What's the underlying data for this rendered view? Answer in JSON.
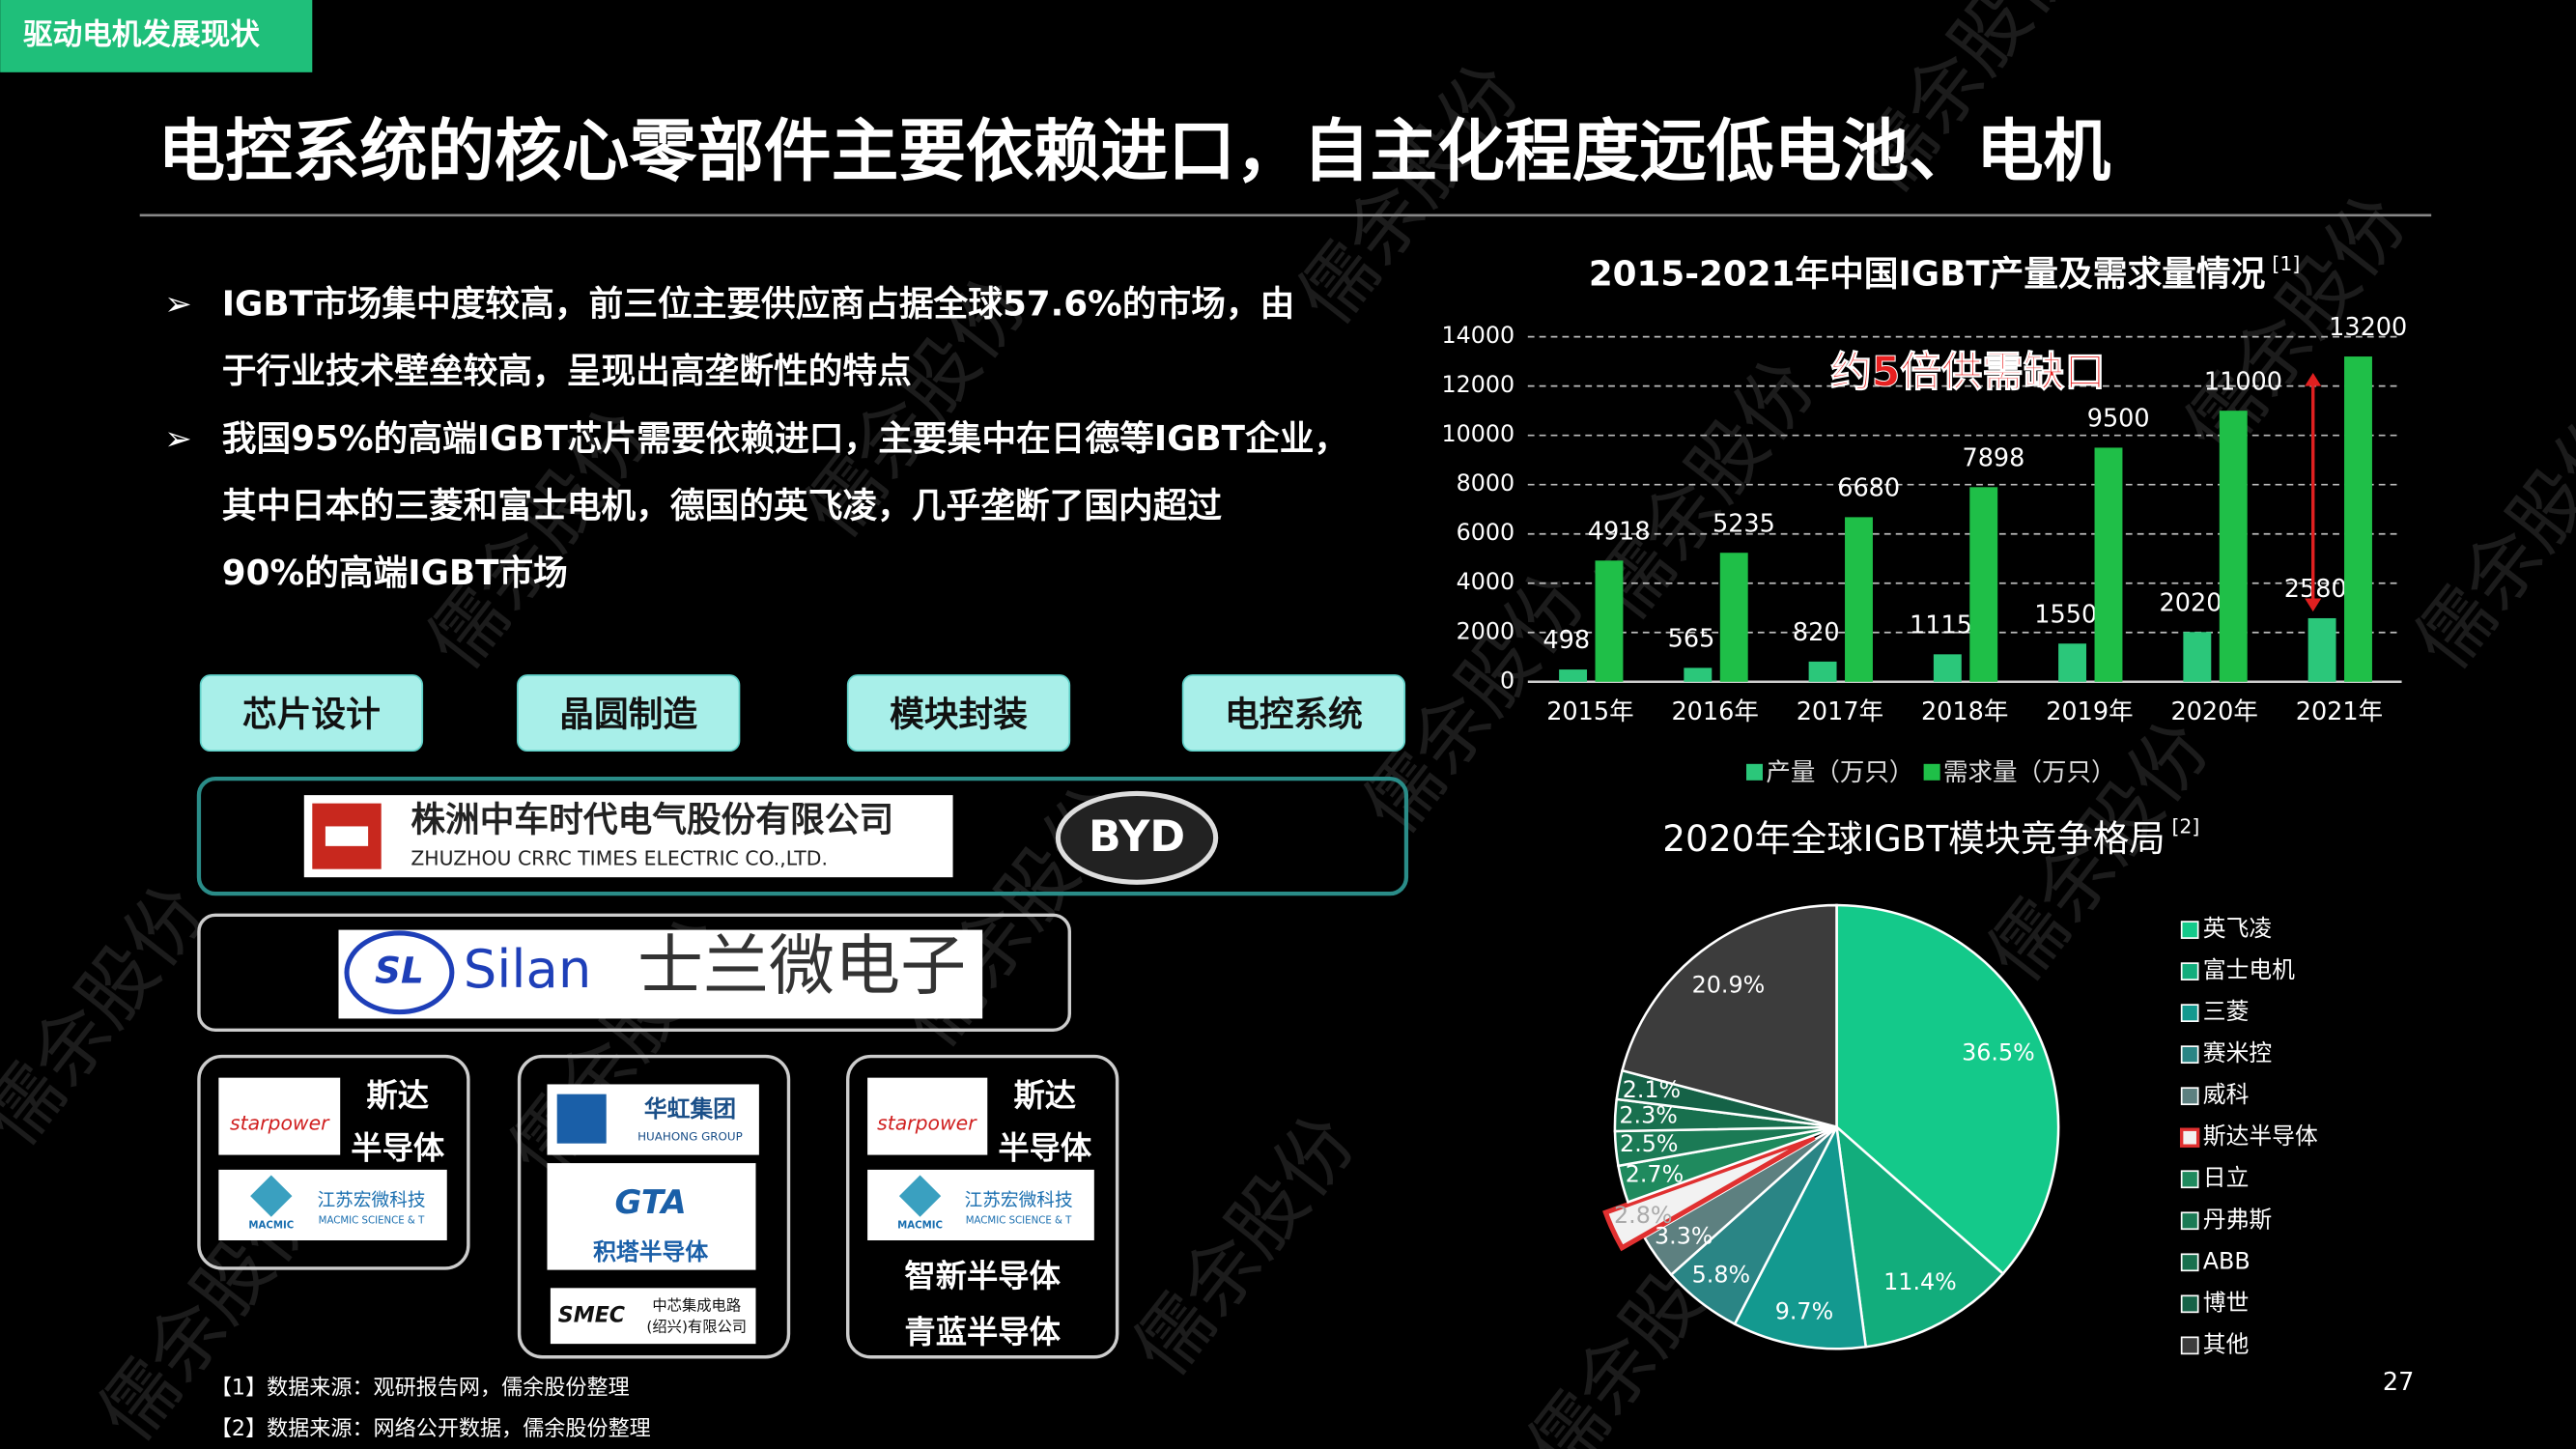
{
  "header": {
    "tag": "驱动电机发展现状",
    "title": "电控系统的核心零部件主要依赖进口，自主化程度远低电池、电机"
  },
  "bullet_marker": "➢",
  "bullets": [
    [
      "IGBT市场集中度较高，前三位主要供应商占据全球57.6%的市场，由",
      "于行业技术壁垒较高，呈现出高垄断性的特点"
    ],
    [
      "我国95%的高端IGBT芯片需要依赖进口，主要集中在日德等IGBT企业，",
      "其中日本的三菱和富士电机，德国的英飞凌，几乎垄断了国内超过",
      "90%的高端IGBT市场"
    ]
  ],
  "supply_chain": {
    "stages": [
      "芯片设计",
      "晶圆制造",
      "模块封装",
      "电控系统"
    ],
    "crrc_cn": "株洲中车时代电气股份有限公司",
    "crrc_en": "ZHUZHOU CRRC TIMES ELECTRIC CO.,LTD.",
    "byd": "BYD",
    "silan": "Silan",
    "silan_cn": "士兰微电子",
    "starpower": "starpower",
    "sida": [
      "斯达",
      "半导体"
    ],
    "macmic_cn": "江苏宏微科技",
    "macmic_en": "MACMIC SCIENCE & T",
    "macmic": "MACMIC",
    "huahong_cn": "华虹集团",
    "huahong_en": "HUAHONG GROUP",
    "gta": "GTA",
    "jita": "积塔半导体",
    "smec": "SMEC",
    "smec_cn": [
      "中芯集成电路",
      "(绍兴)有限公司"
    ],
    "zhixin": "智新半导体",
    "qinglan": "青蓝半导体"
  },
  "footnotes": [
    "【1】数据来源：观研报告网，儒余股份整理",
    "【2】数据来源：网络公开数据，儒余股份整理"
  ],
  "page_number": 27,
  "watermark": "儒余股份",
  "chart_data": [
    {
      "type": "bar",
      "title": "2015-2021年中国IGBT产量及需求量情况",
      "title_note": "[1]",
      "categories": [
        "2015年",
        "2016年",
        "2017年",
        "2018年",
        "2019年",
        "2020年",
        "2021年"
      ],
      "series": [
        {
          "name": "产量（万只）",
          "color": "#2bc77a",
          "values": [
            498,
            565,
            820,
            1115,
            1550,
            2020,
            2580
          ]
        },
        {
          "name": "需求量（万只）",
          "color": "#1fbf48",
          "values": [
            4918,
            5235,
            6680,
            7898,
            9500,
            11000,
            13200
          ]
        }
      ],
      "ylim": [
        0,
        14000
      ],
      "yticks": [
        0,
        2000,
        4000,
        6000,
        8000,
        10000,
        12000,
        14000
      ],
      "grid": true,
      "legend": "bottom",
      "annotation": "约5倍供需缺口"
    },
    {
      "type": "pie",
      "title": "2020年全球IGBT模块竞争格局",
      "title_note": "[2]",
      "categories": [
        "英飞凌",
        "富士电机",
        "三菱",
        "赛米控",
        "威科",
        "斯达半导体",
        "日立",
        "丹弗斯",
        "ABB",
        "博世",
        "其他"
      ],
      "values": [
        36.5,
        11.4,
        9.7,
        5.8,
        3.3,
        2.8,
        2.7,
        2.5,
        2.3,
        2.1,
        20.9
      ],
      "value_labels": [
        "36.5%",
        "11.4%",
        "9.7%",
        "5.8%",
        "3.3%",
        "2.8%",
        "2.7%",
        "2.5%",
        "2.3%",
        "2.1%",
        "20.9%"
      ],
      "colors": [
        "#14c98a",
        "#12ad7c",
        "#13998f",
        "#2a8585",
        "#5d8080",
        "#e03030",
        "#1f8a5e",
        "#1b7a55",
        "#18704e",
        "#156247",
        "#3c3c3c"
      ],
      "explode": [
        0,
        0,
        0,
        0,
        0,
        0.1,
        0,
        0,
        0,
        0,
        0
      ],
      "legend": "right"
    }
  ]
}
